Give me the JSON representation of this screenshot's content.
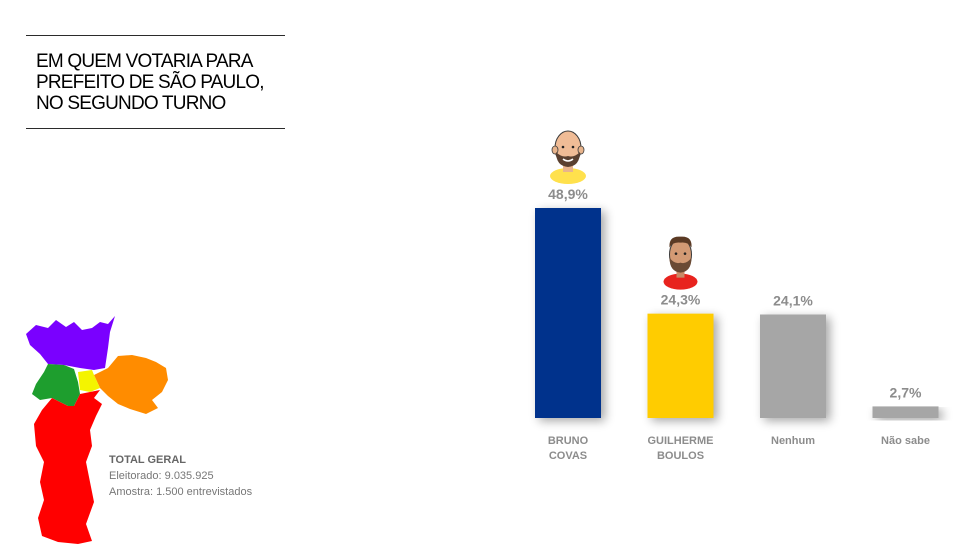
{
  "header": {
    "title_lines": [
      "EM QUEM VOTARIA PARA",
      "PREFEITO DE SÃO PAULO,",
      "NO SEGUNDO TURNO"
    ]
  },
  "sample": {
    "heading": "TOTAL GERAL",
    "electorate": "Eleitorado: 9.035.925",
    "sample_size": "Amostra: 1.500 entrevistados"
  },
  "map_regions": [
    {
      "name": "norte",
      "color": "#7a00ff"
    },
    {
      "name": "leste",
      "color": "#ff8c00"
    },
    {
      "name": "oeste",
      "color": "#1e9e2e"
    },
    {
      "name": "centro",
      "color": "#f4f400"
    },
    {
      "name": "sul",
      "color": "#ff0000"
    }
  ],
  "chart_data": {
    "type": "bar",
    "title": "",
    "xlabel": "",
    "ylabel": "",
    "ylim": [
      0,
      50
    ],
    "grid": false,
    "legend": "none",
    "categories": [
      [
        "BRUNO",
        "COVAS"
      ],
      [
        "GUILHERME",
        "BOULOS"
      ],
      [
        "Nenhum"
      ],
      [
        "Não sabe"
      ]
    ],
    "values": [
      48.9,
      24.3,
      24.1,
      2.7
    ],
    "labels": [
      "48,9%",
      "24,3%",
      "24,1%",
      "2,7%"
    ],
    "colors": [
      "#00318c",
      "#ffcc00",
      "#a6a6a6",
      "#a6a6a6"
    ],
    "icons": [
      "caricature-bruno-covas",
      "caricature-guilherme-boulos",
      "",
      ""
    ]
  }
}
